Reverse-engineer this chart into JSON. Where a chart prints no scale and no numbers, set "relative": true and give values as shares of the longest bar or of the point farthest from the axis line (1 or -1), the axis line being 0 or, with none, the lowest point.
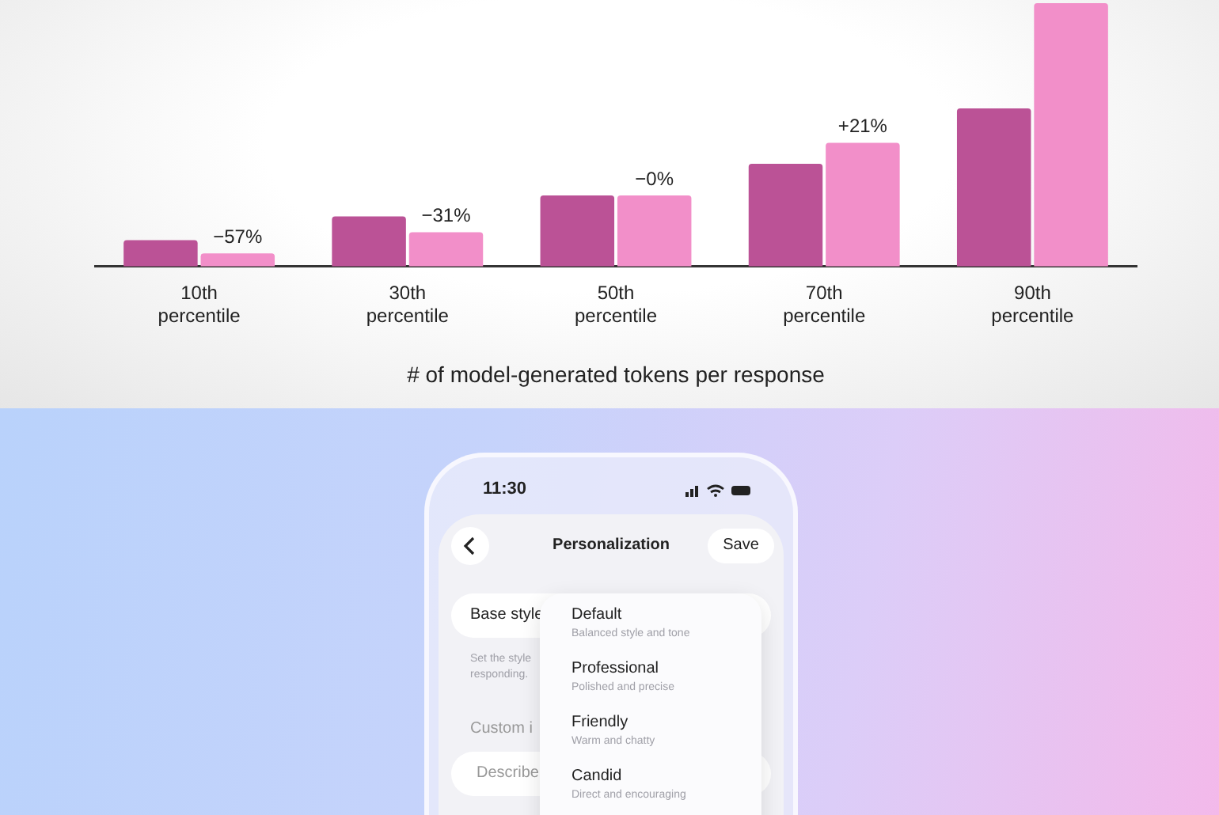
{
  "chart_data": [
    {
      "type": "bar",
      "xlabel": "# of model-generated tokens per response",
      "categories": [
        "10th percentile",
        "30th percentile",
        "50th percentile",
        "70th percentile",
        "90th percentile"
      ],
      "relative": true,
      "grid": false,
      "legend": false,
      "tick_labels": "x",
      "annotations": [
        {
          "text": "−57%",
          "x": "10th percentile",
          "y": 0.05
        },
        {
          "text": "−31%",
          "x": "30th percentile",
          "y": 0.13
        },
        {
          "text": "−0%",
          "x": "50th percentile",
          "y": 0.27
        },
        {
          "text": "+21%",
          "x": "70th percentile",
          "y": 0.47
        }
      ],
      "series": [
        {
          "color": "#bb5296",
          "values": [
            0.1,
            0.19,
            0.27,
            0.39,
            0.6
          ]
        },
        {
          "color": "#f28fc9",
          "values": [
            0.05,
            0.13,
            0.27,
            0.47,
            1
          ]
        }
      ]
    },
    {
      "type": "other",
      "title": "Personalization",
      "annotations": [
        "11:30",
        "Save",
        "Base style",
        "Set the style",
        "responding.",
        "Custom i",
        "Describe",
        "Default",
        "Balanced style and tone",
        "Professional",
        "Polished and precise",
        "Friendly",
        "Warm and chatty",
        "Candid",
        "Direct and encouraging"
      ]
    }
  ]
}
